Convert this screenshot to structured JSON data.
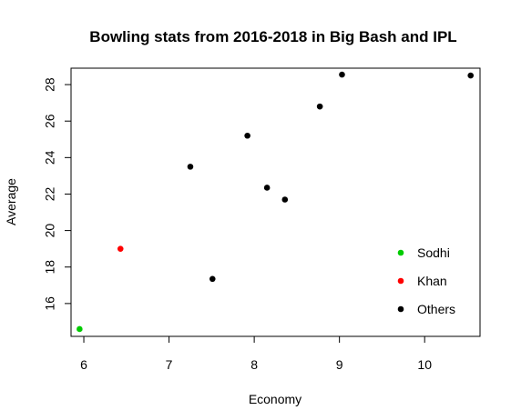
{
  "chart_data": {
    "type": "scatter",
    "title": "Bowling stats from 2016-2018 in Big Bash and IPL",
    "xlabel": "Economy",
    "ylabel": "Average",
    "xlim": [
      5.85,
      10.65
    ],
    "ylim": [
      14.2,
      28.9
    ],
    "xticks": [
      6,
      7,
      8,
      9,
      10
    ],
    "yticks": [
      16,
      18,
      20,
      22,
      24,
      26,
      28
    ],
    "grid": false,
    "legend_position": "bottom-right",
    "series": [
      {
        "name": "Sodhi",
        "color": "#00cc00",
        "points": [
          {
            "x": 5.95,
            "y": 14.6
          }
        ]
      },
      {
        "name": "Khan",
        "color": "#ff0000",
        "points": [
          {
            "x": 6.43,
            "y": 19.0
          }
        ]
      },
      {
        "name": "Others",
        "color": "#000000",
        "points": [
          {
            "x": 7.25,
            "y": 23.5
          },
          {
            "x": 7.51,
            "y": 17.35
          },
          {
            "x": 7.92,
            "y": 25.2
          },
          {
            "x": 8.15,
            "y": 22.35
          },
          {
            "x": 8.36,
            "y": 21.7
          },
          {
            "x": 8.77,
            "y": 26.8
          },
          {
            "x": 9.03,
            "y": 28.55
          },
          {
            "x": 10.54,
            "y": 28.5
          }
        ]
      }
    ]
  }
}
